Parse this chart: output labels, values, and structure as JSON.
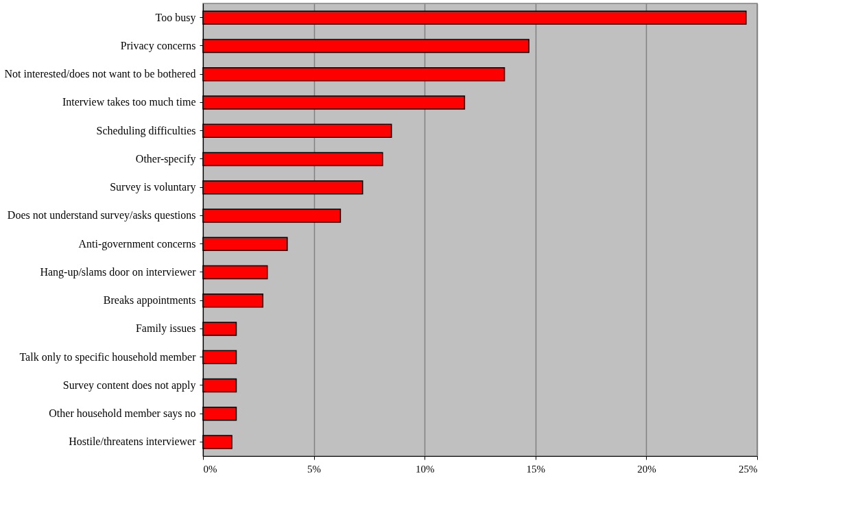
{
  "chart_data": {
    "type": "bar",
    "orientation": "horizontal",
    "categories": [
      "Too busy",
      "Privacy concerns",
      "Not interested/does not want to be bothered",
      "Interview takes too much time",
      "Scheduling difficulties",
      "Other-specify",
      "Survey is voluntary",
      "Does not understand survey/asks questions",
      "Anti-government concerns",
      "Hang-up/slams door on interviewer",
      "Breaks appointments",
      "Family issues",
      "Talk only to specific household member",
      "Survey content does not apply",
      "Other household member says no",
      "Hostile/threatens interviewer"
    ],
    "values": [
      24.5,
      14.7,
      13.6,
      11.8,
      8.5,
      8.1,
      7.2,
      6.2,
      3.8,
      2.9,
      2.7,
      1.5,
      1.5,
      1.5,
      1.5,
      1.3
    ],
    "color": "#ff0000",
    "xlim": [
      0,
      25
    ],
    "xticks": [
      {
        "value": 0,
        "label": "0%"
      },
      {
        "value": 5,
        "label": "5%"
      },
      {
        "value": 10,
        "label": "10%"
      },
      {
        "value": 15,
        "label": "15%"
      },
      {
        "value": 20,
        "label": "20%"
      },
      {
        "value": 25,
        "label": "25%"
      }
    ],
    "grid": "x"
  }
}
